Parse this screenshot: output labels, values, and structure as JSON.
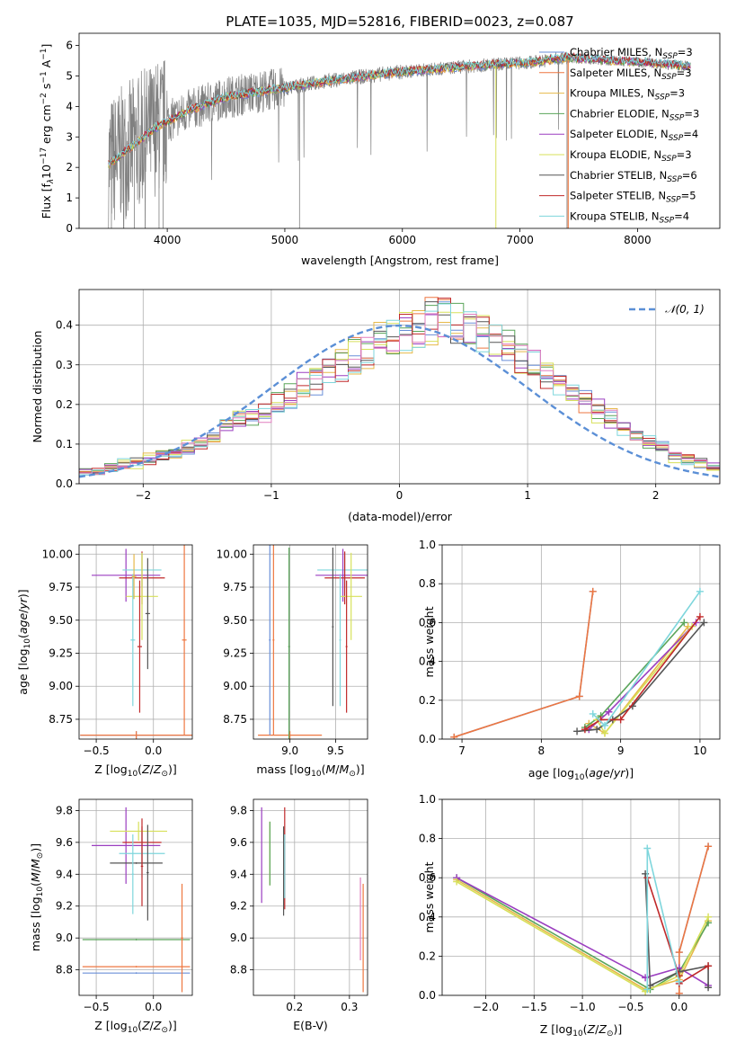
{
  "figure": {
    "title": "PLATE=1035, MJD=52816, FIBERID=0023, z=0.087"
  },
  "colors": {
    "model_lines": [
      "#6a8fd8",
      "#ee7740",
      "#e6b94a",
      "#5aa55a",
      "#9b3ec0",
      "#d7e05a",
      "#555555",
      "#c0292a",
      "#7ed6dc"
    ],
    "data_gray": "#808080",
    "gauss": "#5b8fd6",
    "grid": "#b0b0b0"
  },
  "chart_data": [
    {
      "id": "spectrum",
      "type": "line",
      "xlabel": "wavelength [Angstrom, rest frame]",
      "ylabel": "Flux [f_λ10^-17 erg cm^-2 s^-1 A^-1]",
      "xlim": [
        3250,
        8700
      ],
      "ylim": [
        0,
        6.4
      ],
      "xticks": [
        4000,
        5000,
        6000,
        7000,
        8000
      ],
      "yticks": [
        0,
        1,
        2,
        3,
        4,
        5,
        6
      ],
      "grid": false,
      "legend_position": "top-right",
      "legend": [
        {
          "pre": "Chabrier MILES, N",
          "sub": "SSP",
          "post": "=3"
        },
        {
          "pre": "Salpeter MILES, N",
          "sub": "SSP",
          "post": "=3"
        },
        {
          "pre": "Kroupa MILES, N",
          "sub": "SSP",
          "post": "=3"
        },
        {
          "pre": "Chabrier ELODIE, N",
          "sub": "SSP",
          "post": "=3"
        },
        {
          "pre": "Salpeter ELODIE, N",
          "sub": "SSP",
          "post": "=4"
        },
        {
          "pre": "Kroupa ELODIE, N",
          "sub": "SSP",
          "post": "=3"
        },
        {
          "pre": "Chabrier STELIB, N",
          "sub": "SSP",
          "post": "=6"
        },
        {
          "pre": "Salpeter STELIB, N",
          "sub": "SSP",
          "post": "=5"
        },
        {
          "pre": "Kroupa STELIB, N",
          "sub": "SSP",
          "post": "=4"
        }
      ],
      "continuum": {
        "x": [
          3500,
          3600,
          3700,
          3800,
          3900,
          4000,
          4200,
          4500,
          4800,
          5000,
          5300,
          5600,
          5900,
          6200,
          6500,
          6800,
          7100,
          7400,
          7800,
          8200,
          8500
        ],
        "y": [
          2.1,
          2.4,
          2.7,
          3.0,
          3.3,
          3.5,
          3.9,
          4.3,
          4.5,
          4.6,
          4.8,
          4.95,
          5.1,
          5.2,
          5.3,
          5.38,
          5.45,
          5.6,
          5.5,
          5.4,
          5.3
        ]
      }
    },
    {
      "id": "residuals",
      "type": "area",
      "xlabel": "(data-model)/error",
      "ylabel": "Normed distribution",
      "xlim": [
        -2.5,
        2.5
      ],
      "ylim": [
        0,
        0.49
      ],
      "xticks": [
        -2,
        -1,
        0,
        1,
        2
      ],
      "yticks": [
        0.0,
        0.1,
        0.2,
        0.3,
        0.4
      ],
      "grid": true,
      "legend_position": "top-right",
      "legend": [
        "𝒩(0, 1)"
      ],
      "histogram_bin_width": 0.1,
      "histogram_base": [
        0.03,
        0.03,
        0.04,
        0.05,
        0.05,
        0.06,
        0.07,
        0.08,
        0.09,
        0.1,
        0.12,
        0.14,
        0.16,
        0.17,
        0.18,
        0.2,
        0.22,
        0.24,
        0.26,
        0.28,
        0.3,
        0.32,
        0.33,
        0.35,
        0.36,
        0.38,
        0.39,
        0.4,
        0.41,
        0.4,
        0.39,
        0.38,
        0.36,
        0.34,
        0.32,
        0.3,
        0.27,
        0.25,
        0.22,
        0.2,
        0.18,
        0.16,
        0.14,
        0.12,
        0.1,
        0.09,
        0.07,
        0.06,
        0.05,
        0.04
      ],
      "gauss": {
        "mu": 0,
        "sigma": 1
      }
    },
    {
      "id": "age_vs_Z",
      "type": "scatter",
      "xlabel": "Z [log10(Z/Z⊙)]",
      "ylabel": "age [log10(age/yr)]",
      "xlim": [
        -0.65,
        0.34
      ],
      "ylim": [
        8.6,
        10.07
      ],
      "xticks": [
        -0.5,
        0.0
      ],
      "yticks": [
        8.75,
        9.0,
        9.25,
        9.5,
        9.75,
        10.0
      ],
      "grid": true,
      "points": [
        {
          "x": -0.15,
          "xerr": 0.49,
          "y": 8.63,
          "yerr": 0.03,
          "c": 0
        },
        {
          "x": -0.15,
          "xerr": 0.49,
          "y": 8.63,
          "yerr": 0.03,
          "c": 1
        },
        {
          "x": 0.27,
          "xerr": 0.02,
          "y": 9.35,
          "yerr": 0.72,
          "c": 1
        },
        {
          "x": -0.24,
          "xerr": 0.3,
          "y": 9.84,
          "yerr": 0.2,
          "c": 4
        },
        {
          "x": -0.1,
          "xerr": 0.17,
          "y": 9.88,
          "yerr": 0.13,
          "c": 8
        },
        {
          "x": -0.1,
          "xerr": 0.2,
          "y": 9.82,
          "yerr": 0.2,
          "c": 7
        },
        {
          "x": -0.1,
          "xerr": 0.14,
          "y": 9.68,
          "yerr": 0.33,
          "c": 5
        },
        {
          "x": -0.18,
          "xerr": 0.02,
          "y": 9.35,
          "yerr": 0.5,
          "c": 8
        },
        {
          "x": -0.12,
          "xerr": 0.02,
          "y": 9.3,
          "yerr": 0.5,
          "c": 7
        },
        {
          "x": -0.05,
          "xerr": 0.02,
          "y": 9.55,
          "yerr": 0.42,
          "c": 6
        },
        {
          "x": -0.17,
          "xerr": 0.02,
          "y": 9.83,
          "yerr": 0.17,
          "c": 2
        }
      ]
    },
    {
      "id": "age_vs_mass",
      "type": "scatter",
      "xlabel": "mass [log10(M/M⊙)]",
      "ylabel": "",
      "xlim": [
        8.6,
        9.85
      ],
      "ylim": [
        8.6,
        10.07
      ],
      "xticks": [
        9.0,
        9.5
      ],
      "yticks": [
        8.75,
        9.0,
        9.25,
        9.5,
        9.75,
        10.0
      ],
      "grid": true,
      "points": [
        {
          "x": 9.0,
          "xerr": 0.35,
          "y": 8.63,
          "yerr": 0.03,
          "c": 1
        },
        {
          "x": 8.78,
          "xerr": 0.01,
          "y": 9.35,
          "yerr": 0.72,
          "c": 0
        },
        {
          "x": 8.82,
          "xerr": 0.01,
          "y": 9.35,
          "yerr": 0.72,
          "c": 1
        },
        {
          "x": 8.99,
          "xerr": 0.01,
          "y": 9.3,
          "yerr": 0.75,
          "c": 3
        },
        {
          "x": 9.6,
          "xerr": 0.3,
          "y": 9.88,
          "yerr": 0.13,
          "c": 8
        },
        {
          "x": 9.58,
          "xerr": 0.3,
          "y": 9.84,
          "yerr": 0.2,
          "c": 4
        },
        {
          "x": 9.6,
          "xerr": 0.22,
          "y": 9.82,
          "yerr": 0.2,
          "c": 7
        },
        {
          "x": 9.67,
          "xerr": 0.12,
          "y": 9.68,
          "yerr": 0.33,
          "c": 5
        },
        {
          "x": 9.47,
          "xerr": 0.01,
          "y": 9.45,
          "yerr": 0.6,
          "c": 6
        },
        {
          "x": 9.55,
          "xerr": 0.01,
          "y": 9.35,
          "yerr": 0.5,
          "c": 8
        },
        {
          "x": 9.62,
          "xerr": 0.01,
          "y": 9.3,
          "yerr": 0.5,
          "c": 7
        }
      ]
    },
    {
      "id": "weight_vs_age",
      "type": "line",
      "xlabel": "age [log10(age/yr)]",
      "ylabel": "mass weight",
      "xlim": [
        6.75,
        10.25
      ],
      "ylim": [
        0,
        1
      ],
      "xticks": [
        7,
        8,
        9,
        10
      ],
      "yticks": [
        0.0,
        0.2,
        0.4,
        0.6,
        0.8,
        1.0
      ],
      "grid": true,
      "series": [
        {
          "c": 0,
          "x": [
            6.9,
            8.48,
            8.65
          ],
          "y": [
            0.01,
            0.22,
            0.76
          ]
        },
        {
          "c": 1,
          "x": [
            6.9,
            8.48,
            8.65
          ],
          "y": [
            0.01,
            0.22,
            0.76
          ]
        },
        {
          "c": 2,
          "x": [
            8.6,
            8.8,
            9.85
          ],
          "y": [
            0.08,
            0.03,
            0.58
          ]
        },
        {
          "c": 3,
          "x": [
            8.55,
            8.75,
            9.8
          ],
          "y": [
            0.06,
            0.12,
            0.6
          ]
        },
        {
          "c": 4,
          "x": [
            8.6,
            8.85,
            9.95
          ],
          "y": [
            0.05,
            0.14,
            0.6
          ]
        },
        {
          "c": 5,
          "x": [
            8.7,
            8.8,
            9.9
          ],
          "y": [
            0.1,
            0.03,
            0.58
          ]
        },
        {
          "c": 6,
          "x": [
            8.45,
            8.7,
            8.9,
            9.15,
            10.05
          ],
          "y": [
            0.04,
            0.05,
            0.1,
            0.17,
            0.6
          ]
        },
        {
          "c": 7,
          "x": [
            8.55,
            8.75,
            9.0,
            10.0
          ],
          "y": [
            0.05,
            0.1,
            0.1,
            0.63
          ]
        },
        {
          "c": 8,
          "x": [
            8.65,
            8.8,
            10.0
          ],
          "y": [
            0.13,
            0.07,
            0.76
          ]
        }
      ]
    },
    {
      "id": "mass_vs_Z",
      "type": "scatter",
      "xlabel": "Z [log10(Z/Z⊙)]",
      "ylabel": "mass [log10(M/M⊙)]",
      "xlim": [
        -0.65,
        0.34
      ],
      "ylim": [
        8.64,
        9.87
      ],
      "xticks": [
        -0.5,
        0.0
      ],
      "yticks": [
        8.8,
        9.0,
        9.2,
        9.4,
        9.6,
        9.8
      ],
      "grid": true,
      "points": [
        {
          "x": -0.15,
          "xerr": 0.47,
          "y": 8.78,
          "yerr": 0.005,
          "c": 0
        },
        {
          "x": -0.15,
          "xerr": 0.47,
          "y": 8.82,
          "yerr": 0.005,
          "c": 1
        },
        {
          "x": -0.15,
          "xerr": 0.47,
          "y": 8.99,
          "yerr": 0.005,
          "c": 3
        },
        {
          "x": 0.25,
          "xerr": 0.01,
          "y": 9.0,
          "yerr": 0.34,
          "c": 1
        },
        {
          "x": -0.24,
          "xerr": 0.3,
          "y": 9.58,
          "yerr": 0.24,
          "c": 4
        },
        {
          "x": -0.1,
          "xerr": 0.17,
          "y": 9.6,
          "yerr": 0.15,
          "c": 7
        },
        {
          "x": -0.1,
          "xerr": 0.2,
          "y": 9.53,
          "yerr": 0.15,
          "c": 8
        },
        {
          "x": -0.13,
          "xerr": 0.25,
          "y": 9.67,
          "yerr": 0.06,
          "c": 5
        },
        {
          "x": -0.15,
          "xerr": 0.23,
          "y": 9.47,
          "yerr": 0.005,
          "c": 6
        },
        {
          "x": -0.05,
          "xerr": 0.01,
          "y": 9.41,
          "yerr": 0.3,
          "c": 6
        },
        {
          "x": -0.18,
          "xerr": 0.01,
          "y": 9.4,
          "yerr": 0.25,
          "c": 8
        },
        {
          "x": -0.1,
          "xerr": 0.01,
          "y": 9.45,
          "yerr": 0.25,
          "c": 7
        }
      ]
    },
    {
      "id": "mass_vs_EBV",
      "type": "scatter",
      "xlabel": "E(B-V)",
      "ylabel": "",
      "xlim": [
        0.125,
        0.333
      ],
      "ylim": [
        8.64,
        9.87
      ],
      "xticks": [
        0.2,
        0.3
      ],
      "yticks": [
        8.8,
        9.0,
        9.2,
        9.4,
        9.6,
        9.8
      ],
      "grid": true,
      "points": [
        {
          "x": 0.14,
          "y": 9.52,
          "yerr": 0.3,
          "c": 4
        },
        {
          "x": 0.155,
          "y": 9.53,
          "yerr": 0.2,
          "c": 5
        },
        {
          "x": 0.155,
          "y": 9.53,
          "yerr": 0.2,
          "c": 3
        },
        {
          "x": 0.18,
          "y": 9.42,
          "yerr": 0.28,
          "c": 6
        },
        {
          "x": 0.182,
          "y": 9.5,
          "yerr": 0.32,
          "c": 7
        },
        {
          "x": 0.182,
          "y": 9.45,
          "yerr": 0.2,
          "c": 8
        },
        {
          "x": 0.32,
          "y": 9.12,
          "yerr": 0.26,
          "c": 9
        },
        {
          "x": 0.325,
          "y": 9.0,
          "yerr": 0.34,
          "c": 1
        }
      ]
    },
    {
      "id": "weight_vs_Z",
      "type": "line",
      "xlabel": "Z [log10(Z/Z⊙)]",
      "ylabel": "mass weight",
      "xlim": [
        -2.45,
        0.42
      ],
      "ylim": [
        0,
        1
      ],
      "xticks": [
        -2.0,
        -1.5,
        -1.0,
        -0.5,
        0.0
      ],
      "yticks": [
        0.0,
        0.2,
        0.4,
        0.6,
        0.8,
        1.0
      ],
      "grid": true,
      "series": [
        {
          "c": 0,
          "x": [
            0.0,
            0.0,
            0.3
          ],
          "y": [
            0.01,
            0.22,
            0.76
          ]
        },
        {
          "c": 1,
          "x": [
            0.0,
            0.0,
            0.3
          ],
          "y": [
            0.01,
            0.22,
            0.76
          ]
        },
        {
          "c": 2,
          "x": [
            -2.3,
            -0.35,
            0.0,
            0.3
          ],
          "y": [
            0.59,
            0.03,
            0.08,
            0.38
          ]
        },
        {
          "c": 3,
          "x": [
            -2.3,
            -0.3,
            0.0,
            0.3
          ],
          "y": [
            0.6,
            0.03,
            0.12,
            0.37
          ]
        },
        {
          "c": 4,
          "x": [
            -2.3,
            -0.35,
            0.0,
            0.3
          ],
          "y": [
            0.6,
            0.09,
            0.14,
            0.05
          ]
        },
        {
          "c": 5,
          "x": [
            -2.3,
            -0.35,
            0.0,
            0.3
          ],
          "y": [
            0.58,
            0.02,
            0.1,
            0.4
          ]
        },
        {
          "c": 6,
          "x": [
            -0.35,
            -0.3,
            0.0,
            0.3,
            0.3
          ],
          "y": [
            0.62,
            0.05,
            0.12,
            0.15,
            0.04
          ]
        },
        {
          "c": 7,
          "x": [
            -0.33,
            0.0,
            0.0,
            0.3
          ],
          "y": [
            0.6,
            0.1,
            0.06,
            0.15
          ]
        },
        {
          "c": 8,
          "x": [
            -0.33,
            -0.33,
            0.0
          ],
          "y": [
            0.03,
            0.75,
            0.07
          ]
        }
      ]
    }
  ]
}
